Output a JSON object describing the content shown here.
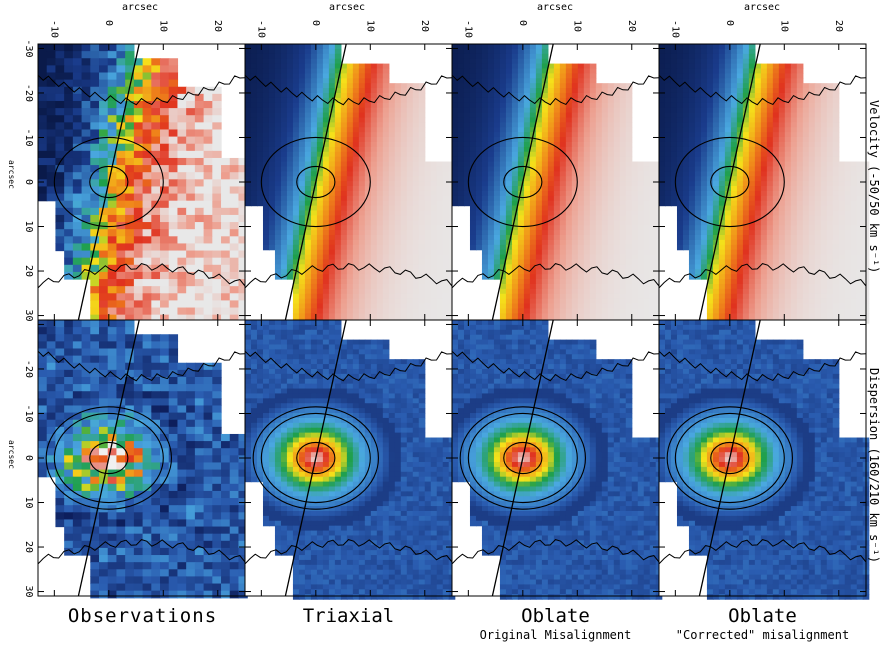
{
  "figure": {
    "axis_unit": "arcsec",
    "x_ticks": [
      "-10",
      "0",
      "10",
      "20"
    ],
    "y_ticks": [
      "-30",
      "-20",
      "-10",
      "0",
      "10",
      "20",
      "30"
    ],
    "row_titles": [
      "Velocity (-50/50 km s⁻¹)",
      "Dispersion (160/210 km s⁻¹)"
    ],
    "velocity_range": [
      -50,
      50
    ],
    "dispersion_range": [
      160,
      210
    ],
    "columns": [
      {
        "title": "Observations",
        "subtitle": ""
      },
      {
        "title": "Triaxial",
        "subtitle": ""
      },
      {
        "title": "Oblate",
        "subtitle": "Original Misalignment"
      },
      {
        "title": "Oblate",
        "subtitle": "\"Corrected\" misalignment"
      }
    ],
    "colors": {
      "velocity_low": "#0a1a4a",
      "velocity_mid_blue": "#4aa8e0",
      "velocity_green": "#1fa04a",
      "velocity_yellow": "#f5e21a",
      "velocity_red": "#e0321e",
      "velocity_high": "#e8e8e8",
      "dispersion_low": "#0d1e5c",
      "dispersion_center": "#f0f0f0"
    }
  }
}
